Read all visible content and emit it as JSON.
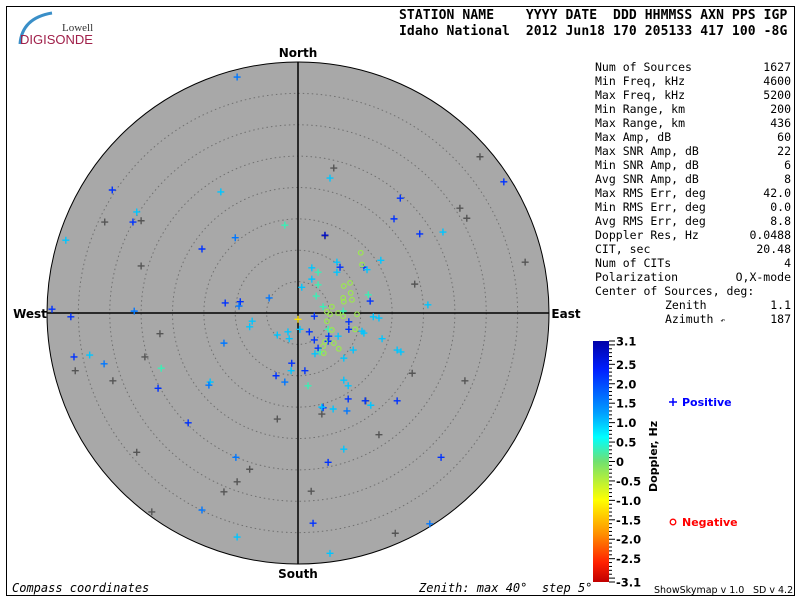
{
  "logo": {
    "line1": "Lowell",
    "line2": "DIGISONDE"
  },
  "header": {
    "labels": "STATION NAME    YYYY DATE  DDD HHMMSS AXN PPS IGP",
    "values": "Idaho National  2012 Jun18 170 205133 417 100 -8G"
  },
  "stats": [
    {
      "label": "Num of Sources",
      "value": "1627"
    },
    {
      "label": "Min Freq, kHz",
      "value": "4600"
    },
    {
      "label": "Max Freq, kHz",
      "value": "5200"
    },
    {
      "label": "Min Range, km",
      "value": "200"
    },
    {
      "label": "Max Range, km",
      "value": "436"
    },
    {
      "label": "Max Amp, dB",
      "value": "60"
    },
    {
      "label": "Max SNR Amp, dB",
      "value": "22"
    },
    {
      "label": "Min SNR Amp, dB",
      "value": "6"
    },
    {
      "label": "Avg SNR Amp, dB",
      "value": "8"
    },
    {
      "label": "Max RMS Err, deg",
      "value": "42.0"
    },
    {
      "label": "Min RMS Err, deg",
      "value": "0.0"
    },
    {
      "label": "Avg RMS Err, deg",
      "value": "8.8"
    },
    {
      "label": "Doppler Res, Hz",
      "value": "0.0488"
    },
    {
      "label": "CIT, sec",
      "value": "20.48"
    },
    {
      "label": "Num of CITs",
      "value": "4"
    },
    {
      "label": "Polarization",
      "value": "O,X-mode"
    }
  ],
  "center": {
    "title": "Center of Sources, deg:",
    "zenith_label": "Zenith",
    "zenith": "1.1",
    "azimuth_label": "Azimuth",
    "azimuth": "187",
    "azimuth_arrow": "↶"
  },
  "footer": {
    "left": "Compass coordinates",
    "zenith": "Zenith: max 40°  step 5°",
    "version1": "ShowSkymap v 1.0",
    "version2": "SD v 4.2"
  },
  "colors": {
    "background": "#a8a8a8",
    "positive": "#0000ff",
    "negative": "#ff0000",
    "no_doppler": "#555555"
  },
  "chart_data": {
    "type": "scatter",
    "projection": "polar skymap, compass coordinates",
    "directions": {
      "north": "North",
      "south": "South",
      "east": "East",
      "west": "West"
    },
    "zenith_max": 40,
    "zenith_step": 5,
    "point_units": "[east_deg, north_deg, doppler_Hz] (doppler null = gray marker)",
    "colorbar": {
      "label": "Doppler, Hz",
      "range": [
        -3.1,
        3.1
      ],
      "ticks": [
        "3.1",
        "2.5",
        "2.0",
        "1.5",
        "1.0",
        "0.5",
        "0",
        "-0.5",
        "-1.0",
        "-1.5",
        "-2.0",
        "-2.5",
        "-3.1"
      ]
    },
    "legend": {
      "positive": "Positive",
      "negative": "Negative"
    },
    "points": [
      [
        -9.7,
        37.6,
        1.6
      ],
      [
        -29.6,
        19.6,
        2.2
      ],
      [
        -26.3,
        14.5,
        2.2
      ],
      [
        -25.0,
        14.7,
        null
      ],
      [
        -30.8,
        14.5,
        null
      ],
      [
        -25.7,
        16.1,
        1.0
      ],
      [
        -37.0,
        11.6,
        1.0
      ],
      [
        -15.3,
        10.2,
        2.2
      ],
      [
        -10.0,
        12.0,
        1.6
      ],
      [
        -12.3,
        19.3,
        1.0
      ],
      [
        -2.1,
        14.0,
        0.3
      ],
      [
        4.3,
        12.3,
        null
      ],
      [
        5.7,
        23.1,
        null
      ],
      [
        5.1,
        21.5,
        1.0
      ],
      [
        16.3,
        18.3,
        2.2
      ],
      [
        15.3,
        15.0,
        2.2
      ],
      [
        19.4,
        12.6,
        2.2
      ],
      [
        23.1,
        12.9,
        1.0
      ],
      [
        25.8,
        16.7,
        null
      ],
      [
        26.9,
        15.1,
        null
      ],
      [
        29.0,
        24.9,
        null
      ],
      [
        32.8,
        20.9,
        2.2
      ],
      [
        36.2,
        8.1,
        null
      ],
      [
        -25.0,
        7.5,
        null
      ],
      [
        -39.2,
        0.6,
        2.2
      ],
      [
        -36.2,
        -0.6,
        2.2
      ],
      [
        -26.1,
        0.3,
        1.6
      ],
      [
        -11.6,
        1.6,
        2.2
      ],
      [
        -9.2,
        1.8,
        2.2
      ],
      [
        -22.0,
        -3.3,
        null
      ],
      [
        -35.7,
        -7.0,
        2.2
      ],
      [
        -33.2,
        -6.7,
        1.0
      ],
      [
        -30.9,
        -8.1,
        1.6
      ],
      [
        -35.5,
        -9.2,
        null
      ],
      [
        -29.5,
        -10.8,
        null
      ],
      [
        -24.4,
        -7.0,
        null
      ],
      [
        -21.8,
        -8.8,
        0.3
      ],
      [
        -22.3,
        -12.0,
        2.2
      ],
      [
        -14.0,
        -11.0,
        1.0
      ],
      [
        -17.5,
        -17.5,
        2.2
      ],
      [
        -25.7,
        -22.2,
        null
      ],
      [
        -9.9,
        -23.0,
        1.6
      ],
      [
        -7.7,
        -24.9,
        null
      ],
      [
        -9.7,
        -26.9,
        null
      ],
      [
        -11.8,
        -28.5,
        null
      ],
      [
        -23.3,
        -31.7,
        null
      ],
      [
        -15.3,
        -31.4,
        1.6
      ],
      [
        -9.7,
        -35.7,
        1.0
      ],
      [
        2.1,
        -28.4,
        null
      ],
      [
        2.4,
        -33.5,
        2.2
      ],
      [
        4.8,
        -23.8,
        2.2
      ],
      [
        5.1,
        -38.3,
        1.0
      ],
      [
        15.5,
        -35.1,
        null
      ],
      [
        21.0,
        -33.6,
        1.6
      ],
      [
        22.8,
        -23.0,
        2.2
      ],
      [
        12.9,
        -19.4,
        null
      ],
      [
        7.3,
        -21.7,
        1.0
      ],
      [
        10.8,
        -14.0,
        null
      ],
      [
        15.8,
        -14.0,
        2.2
      ],
      [
        18.2,
        -9.6,
        null
      ],
      [
        26.6,
        -10.8,
        null
      ],
      [
        16.4,
        -6.2,
        1.0
      ],
      [
        20.7,
        1.3,
        1.0
      ],
      [
        18.6,
        4.6,
        null
      ],
      [
        -3.5,
        -10.0,
        2.2
      ],
      [
        -1.0,
        -8.0,
        2.2
      ],
      [
        -3.3,
        -16.9,
        null
      ],
      [
        4.0,
        -15.1,
        2.2
      ],
      [
        3.8,
        -16.1,
        null
      ],
      [
        -4.6,
        2.4,
        1.6
      ],
      [
        4.3,
        12.4,
        2.8
      ],
      [
        10.0,
        9.6,
        -0.3
      ],
      [
        13.2,
        8.4,
        1.0
      ],
      [
        2.2,
        7.2,
        1.0
      ],
      [
        3.2,
        6.5,
        0.3
      ],
      [
        6.2,
        8.1,
        1.0
      ],
      [
        6.7,
        7.3,
        2.2
      ],
      [
        10.5,
        7.3,
        2.2
      ],
      [
        10.2,
        7.7,
        -0.3
      ],
      [
        6.2,
        6.5,
        1.0
      ],
      [
        11.0,
        6.9,
        1.0
      ],
      [
        2.2,
        5.4,
        1.0
      ],
      [
        3.2,
        4.5,
        0.3
      ],
      [
        0.6,
        4.1,
        1.0
      ],
      [
        7.3,
        4.3,
        -0.3
      ],
      [
        8.3,
        4.8,
        -0.3
      ],
      [
        8.4,
        3.2,
        -0.3
      ],
      [
        2.9,
        2.7,
        0.3
      ],
      [
        7.2,
        2.4,
        -0.3
      ],
      [
        7.3,
        1.8,
        -0.3
      ],
      [
        8.6,
        2.1,
        -0.3
      ],
      [
        11.2,
        2.9,
        0.3
      ],
      [
        11.5,
        1.9,
        2.2
      ],
      [
        5.4,
        1.0,
        -0.3
      ],
      [
        4.0,
        1.0,
        0.3
      ],
      [
        7.2,
        0.3,
        0.3
      ],
      [
        6.4,
        0.0,
        -0.3
      ],
      [
        7.2,
        -0.5,
        -0.3
      ],
      [
        9.4,
        -0.2,
        -0.3
      ],
      [
        4.6,
        0.2,
        -0.3
      ],
      [
        5.1,
        -0.2,
        -0.3
      ],
      [
        2.6,
        -0.5,
        2.2
      ],
      [
        4.6,
        -1.3,
        -0.3
      ],
      [
        0.0,
        -1.0,
        -1.2
      ],
      [
        8.1,
        -1.4,
        2.2
      ],
      [
        12.0,
        -0.6,
        1.0
      ],
      [
        12.9,
        -0.8,
        1.0
      ],
      [
        8.1,
        -2.6,
        2.2
      ],
      [
        9.1,
        -2.6,
        -0.3
      ],
      [
        4.8,
        -2.6,
        0.3
      ],
      [
        5.4,
        -2.7,
        -0.3
      ],
      [
        0.3,
        -2.6,
        1.0
      ],
      [
        -1.6,
        -3.0,
        1.0
      ],
      [
        1.8,
        -3.0,
        2.2
      ],
      [
        4.9,
        -3.7,
        2.2
      ],
      [
        4.8,
        -4.5,
        2.2
      ],
      [
        6.4,
        -3.7,
        1.0
      ],
      [
        10.2,
        -2.9,
        1.0
      ],
      [
        10.5,
        -3.2,
        1.0
      ],
      [
        -3.3,
        -3.5,
        1.0
      ],
      [
        -1.4,
        -4.1,
        1.0
      ],
      [
        2.6,
        -4.3,
        2.2
      ],
      [
        4.3,
        -4.6,
        -0.3
      ],
      [
        4.0,
        -5.3,
        -0.3
      ],
      [
        5.7,
        -4.8,
        -0.3
      ],
      [
        3.2,
        -5.6,
        2.2
      ],
      [
        13.4,
        -4.1,
        1.0
      ],
      [
        3.5,
        -6.2,
        0.3
      ],
      [
        4.1,
        -6.4,
        -0.3
      ],
      [
        2.7,
        -6.5,
        1.0
      ],
      [
        6.5,
        -5.7,
        -0.3
      ],
      [
        8.8,
        -5.9,
        1.0
      ],
      [
        7.3,
        -7.2,
        1.0
      ],
      [
        15.8,
        -5.9,
        1.0
      ],
      [
        1.1,
        -9.2,
        2.2
      ],
      [
        -1.1,
        -9.2,
        1.0
      ],
      [
        -2.1,
        -11.0,
        1.6
      ],
      [
        1.6,
        -11.6,
        0.3
      ],
      [
        7.3,
        -10.7,
        1.0
      ],
      [
        8.0,
        -11.6,
        1.0
      ],
      [
        -14.2,
        -11.5,
        1.6
      ],
      [
        -11.8,
        -4.8,
        1.6
      ],
      [
        -7.7,
        -2.2,
        1.0
      ],
      [
        -7.3,
        -1.3,
        1.0
      ],
      [
        8.0,
        -13.7,
        2.2
      ],
      [
        3.8,
        -15.0,
        1.0
      ],
      [
        5.6,
        -15.3,
        1.0
      ],
      [
        7.8,
        -15.6,
        1.6
      ],
      [
        10.7,
        -14.0,
        2.2
      ],
      [
        11.6,
        -14.7,
        1.0
      ],
      [
        -9.4,
        1.1,
        1.6
      ]
    ]
  }
}
